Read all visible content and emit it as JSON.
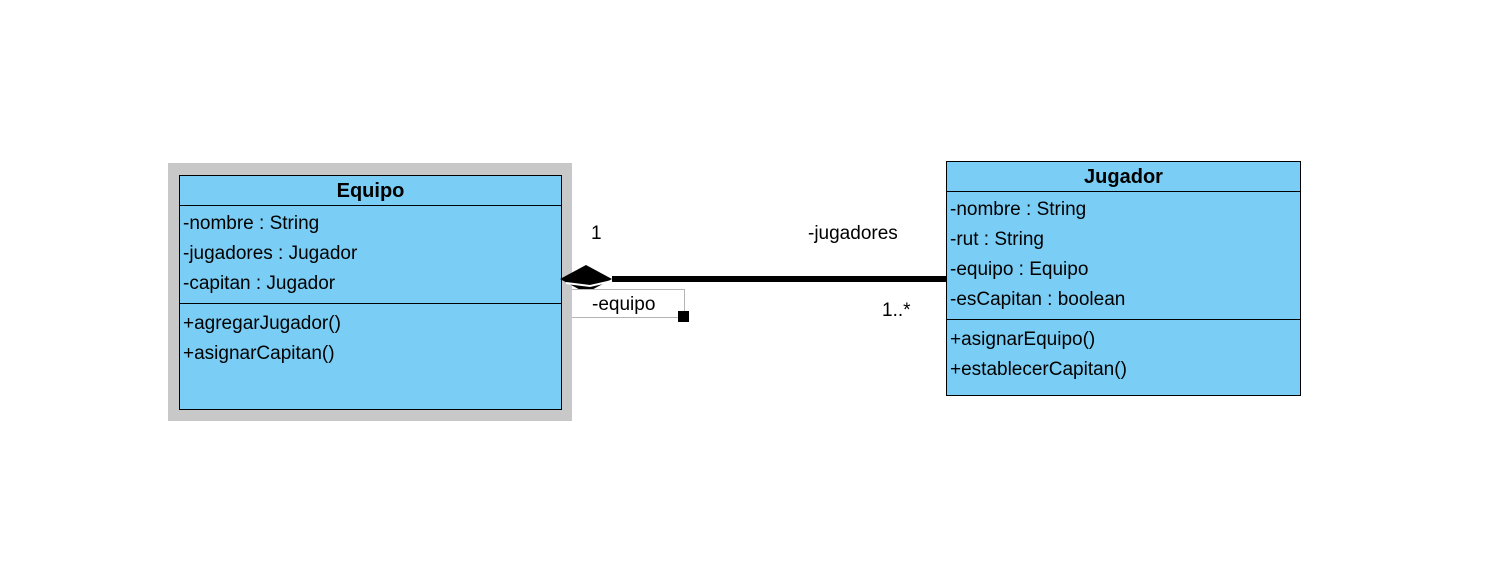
{
  "diagram": {
    "classes": [
      {
        "id": "equipo",
        "name": "Equipo",
        "attributes": [
          "-nombre : String",
          "-jugadores : Jugador",
          "-capitan : Jugador"
        ],
        "operations": [
          "+agregarJugador()",
          "+asignarCapitan()"
        ],
        "selected": true
      },
      {
        "id": "jugador",
        "name": "Jugador",
        "attributes": [
          "-nombre : String",
          "-rut : String",
          "-equipo : Equipo",
          "-esCapitan : boolean"
        ],
        "operations": [
          "+asignarEquipo()",
          "+establecerCapitan()"
        ],
        "selected": false
      }
    ],
    "association": {
      "type": "composition",
      "whole": "Equipo",
      "part": "Jugador",
      "whole_multiplicity": "1",
      "part_multiplicity": "1..*",
      "part_role": "-jugadores",
      "whole_role": "-equipo"
    },
    "colors": {
      "class_fill": "#7acdf4",
      "selection_halo": "#c8c8c8",
      "line": "#000000"
    }
  }
}
